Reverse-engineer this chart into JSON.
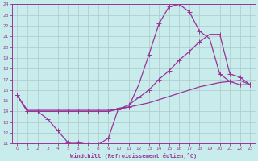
{
  "bg_color": "#c8ecec",
  "line_color": "#993399",
  "grid_color": "#b0c8c8",
  "xlabel": "Windchill (Refroidissement éolien,°C)",
  "xlim": [
    -0.5,
    23.5
  ],
  "ylim": [
    11,
    24
  ],
  "xticks": [
    0,
    1,
    2,
    3,
    4,
    5,
    6,
    7,
    8,
    9,
    10,
    11,
    12,
    13,
    14,
    15,
    16,
    17,
    18,
    19,
    20,
    21,
    22,
    23
  ],
  "yticks": [
    11,
    12,
    13,
    14,
    15,
    16,
    17,
    18,
    19,
    20,
    21,
    22,
    23,
    24
  ],
  "curve1_x": [
    0,
    1,
    2,
    3,
    4,
    5,
    6,
    7,
    8,
    9,
    10,
    11,
    12,
    13,
    14,
    15,
    16,
    17,
    18,
    19,
    20,
    21,
    22,
    23
  ],
  "curve1_y": [
    15.5,
    14.0,
    14.0,
    13.3,
    12.2,
    11.1,
    11.1,
    10.9,
    10.9,
    11.5,
    14.3,
    14.4,
    16.5,
    19.3,
    22.2,
    23.8,
    24.0,
    23.3,
    21.5,
    20.8,
    17.5,
    16.8,
    16.5,
    16.5
  ],
  "curve2_x": [
    0,
    1,
    2,
    3,
    4,
    5,
    6,
    7,
    8,
    9,
    10,
    11,
    12,
    13,
    14,
    15,
    16,
    17,
    18,
    19,
    20,
    21,
    22,
    23
  ],
  "curve2_y": [
    15.5,
    14.0,
    14.0,
    14.0,
    14.0,
    14.0,
    14.0,
    14.0,
    14.0,
    14.0,
    14.2,
    14.6,
    15.3,
    16.0,
    17.0,
    17.8,
    18.8,
    19.6,
    20.5,
    21.2,
    21.2,
    17.5,
    17.2,
    16.5
  ],
  "curve3_x": [
    0,
    1,
    2,
    3,
    4,
    5,
    6,
    7,
    8,
    9,
    10,
    11,
    12,
    13,
    14,
    15,
    16,
    17,
    18,
    19,
    20,
    21,
    22,
    23
  ],
  "curve3_y": [
    15.5,
    14.1,
    14.1,
    14.1,
    14.1,
    14.1,
    14.1,
    14.1,
    14.1,
    14.1,
    14.2,
    14.4,
    14.6,
    14.8,
    15.1,
    15.4,
    15.7,
    16.0,
    16.3,
    16.5,
    16.7,
    16.8,
    16.9,
    16.5
  ]
}
